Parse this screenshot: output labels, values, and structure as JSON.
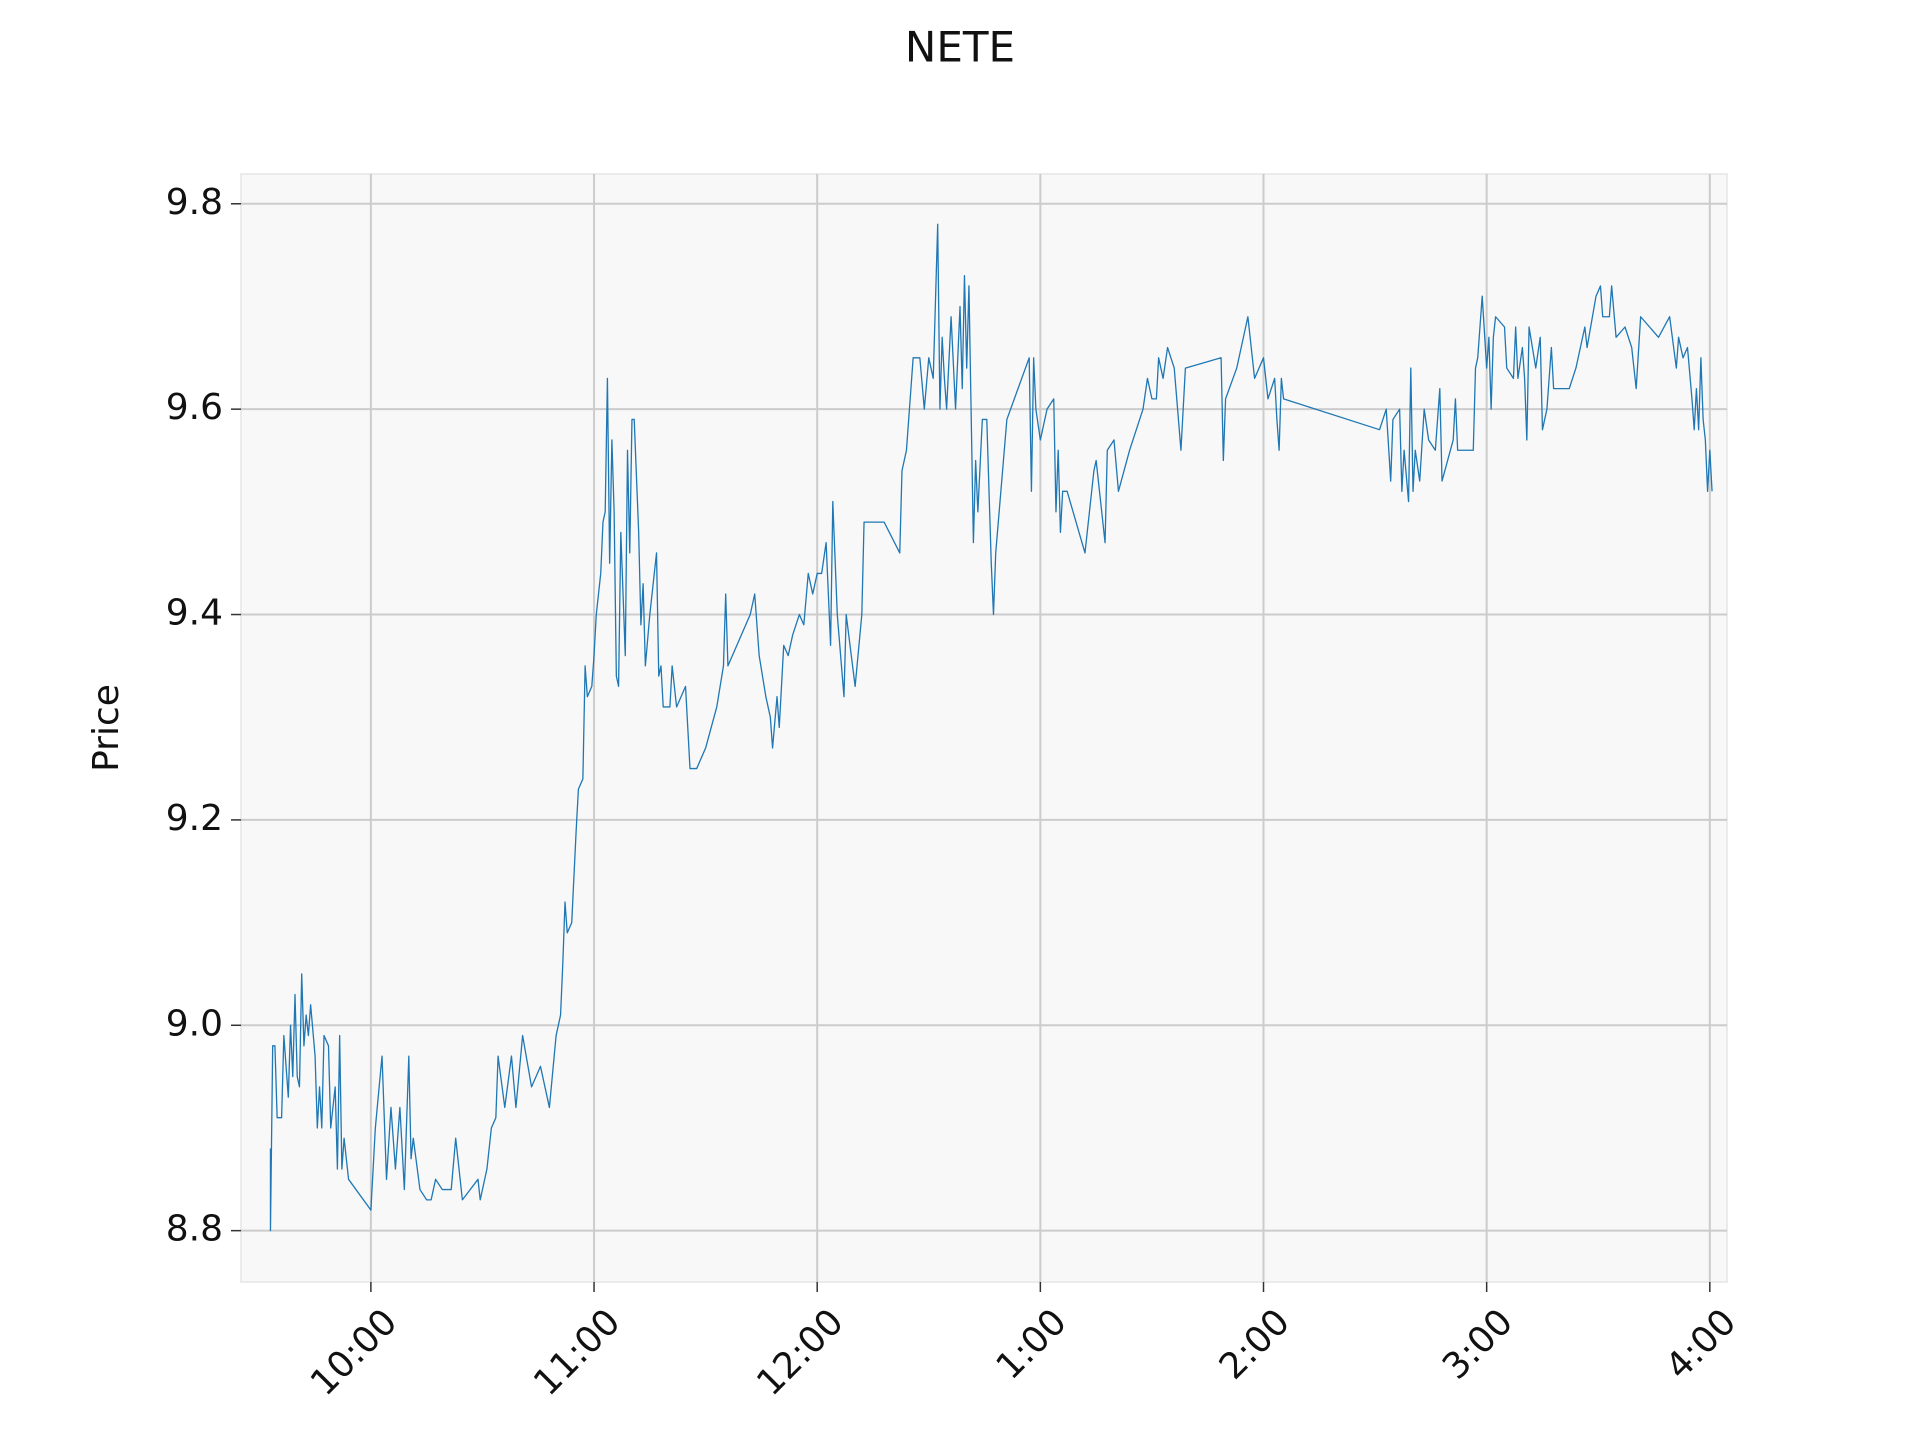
{
  "chart_data": {
    "type": "line",
    "title": "NETE",
    "ylabel": "Price",
    "color": "#1f77b4",
    "grid": true,
    "xlim": [
      9.418,
      16.077
    ],
    "ylim": [
      8.75,
      9.829
    ],
    "xticks": [
      {
        "value": 10,
        "label": "10:00"
      },
      {
        "value": 11,
        "label": "11:00"
      },
      {
        "value": 12,
        "label": "12:00"
      },
      {
        "value": 13,
        "label": "1:00"
      },
      {
        "value": 14,
        "label": "2:00"
      },
      {
        "value": 15,
        "label": "3:00"
      },
      {
        "value": 16,
        "label": "4:00"
      }
    ],
    "yticks": [
      8.8,
      {
        "value": 9,
        "label": "9.0"
      },
      9.2,
      9.4,
      9.6,
      9.8
    ],
    "x": [
      9.55,
      9.55,
      9.56,
      9.57,
      9.58,
      9.6,
      9.61,
      9.63,
      9.64,
      9.65,
      9.66,
      9.67,
      9.68,
      9.69,
      9.7,
      9.71,
      9.72,
      9.73,
      9.75,
      9.76,
      9.77,
      9.78,
      9.79,
      9.81,
      9.82,
      9.84,
      9.85,
      9.86,
      9.87,
      9.88,
      9.9,
      10.0,
      10.02,
      10.05,
      10.07,
      10.09,
      10.11,
      10.13,
      10.15,
      10.17,
      10.18,
      10.19,
      10.22,
      10.25,
      10.27,
      10.29,
      10.32,
      10.36,
      10.38,
      10.41,
      10.48,
      10.49,
      10.52,
      10.54,
      10.56,
      10.57,
      10.6,
      10.63,
      10.65,
      10.68,
      10.72,
      10.76,
      10.8,
      10.83,
      10.85,
      10.86,
      10.87,
      10.88,
      10.9,
      10.92,
      10.93,
      10.95,
      10.96,
      10.97,
      10.99,
      11.0,
      11.01,
      11.03,
      11.04,
      11.05,
      11.06,
      11.07,
      11.08,
      11.09,
      11.1,
      11.11,
      11.12,
      11.14,
      11.15,
      11.16,
      11.17,
      11.18,
      11.2,
      11.21,
      11.22,
      11.23,
      11.25,
      11.28,
      11.29,
      11.3,
      11.31,
      11.34,
      11.35,
      11.37,
      11.41,
      11.43,
      11.46,
      11.5,
      11.55,
      11.58,
      11.59,
      11.6,
      11.7,
      11.72,
      11.74,
      11.77,
      11.79,
      11.8,
      11.82,
      11.83,
      11.85,
      11.87,
      11.89,
      11.92,
      11.94,
      11.96,
      11.98,
      12.0,
      12.02,
      12.04,
      12.06,
      12.07,
      12.09,
      12.12,
      12.13,
      12.17,
      12.2,
      12.21,
      12.3,
      12.37,
      12.38,
      12.4,
      12.42,
      12.43,
      12.46,
      12.48,
      12.5,
      12.52,
      12.54,
      12.55,
      12.56,
      12.57,
      12.58,
      12.6,
      12.62,
      12.64,
      12.65,
      12.66,
      12.67,
      12.68,
      12.7,
      12.71,
      12.72,
      12.74,
      12.76,
      12.78,
      12.79,
      12.8,
      12.85,
      12.95,
      12.96,
      12.97,
      12.98,
      13.0,
      13.03,
      13.06,
      13.07,
      13.08,
      13.09,
      13.1,
      13.12,
      13.2,
      13.24,
      13.25,
      13.27,
      13.29,
      13.3,
      13.33,
      13.35,
      13.4,
      13.46,
      13.48,
      13.5,
      13.52,
      13.53,
      13.55,
      13.57,
      13.6,
      13.63,
      13.65,
      13.81,
      13.82,
      13.83,
      13.88,
      13.93,
      13.96,
      14.0,
      14.02,
      14.05,
      14.06,
      14.07,
      14.08,
      14.09,
      14.52,
      14.55,
      14.57,
      14.58,
      14.61,
      14.62,
      14.63,
      14.65,
      14.66,
      14.67,
      14.68,
      14.7,
      14.72,
      14.74,
      14.77,
      14.79,
      14.8,
      14.85,
      14.86,
      14.87,
      14.89,
      14.94,
      14.95,
      14.96,
      14.98,
      15.0,
      15.01,
      15.02,
      15.03,
      15.04,
      15.08,
      15.09,
      15.12,
      15.13,
      15.14,
      15.16,
      15.17,
      15.18,
      15.19,
      15.22,
      15.24,
      15.25,
      15.27,
      15.29,
      15.3,
      15.37,
      15.4,
      15.42,
      15.44,
      15.45,
      15.49,
      15.51,
      15.52,
      15.55,
      15.56,
      15.58,
      15.62,
      15.65,
      15.67,
      15.69,
      15.77,
      15.82,
      15.85,
      15.86,
      15.88,
      15.9,
      15.92,
      15.93,
      15.94,
      15.95,
      15.96,
      15.97,
      15.98,
      15.99,
      16.0,
      16.01
    ],
    "values": [
      8.88,
      8.8,
      8.98,
      8.98,
      8.91,
      8.91,
      8.99,
      8.93,
      9.0,
      8.95,
      9.03,
      8.95,
      8.94,
      9.05,
      8.98,
      9.01,
      8.99,
      9.02,
      8.97,
      8.9,
      8.94,
      8.9,
      8.99,
      8.98,
      8.9,
      8.94,
      8.86,
      8.99,
      8.86,
      8.89,
      8.85,
      8.82,
      8.9,
      8.97,
      8.85,
      8.92,
      8.86,
      8.92,
      8.84,
      8.97,
      8.87,
      8.89,
      8.84,
      8.83,
      8.83,
      8.85,
      8.84,
      8.84,
      8.89,
      8.83,
      8.85,
      8.83,
      8.86,
      8.9,
      8.91,
      8.97,
      8.92,
      8.97,
      8.92,
      8.99,
      8.94,
      8.96,
      8.92,
      8.99,
      9.01,
      9.06,
      9.12,
      9.09,
      9.1,
      9.19,
      9.23,
      9.24,
      9.35,
      9.32,
      9.33,
      9.36,
      9.4,
      9.44,
      9.49,
      9.5,
      9.63,
      9.45,
      9.57,
      9.5,
      9.34,
      9.33,
      9.48,
      9.36,
      9.56,
      9.46,
      9.59,
      9.59,
      9.48,
      9.39,
      9.43,
      9.35,
      9.4,
      9.46,
      9.34,
      9.35,
      9.31,
      9.31,
      9.35,
      9.31,
      9.33,
      9.25,
      9.25,
      9.27,
      9.31,
      9.35,
      9.42,
      9.35,
      9.4,
      9.42,
      9.36,
      9.32,
      9.3,
      9.27,
      9.32,
      9.29,
      9.37,
      9.36,
      9.38,
      9.4,
      9.39,
      9.44,
      9.42,
      9.44,
      9.44,
      9.47,
      9.37,
      9.51,
      9.4,
      9.32,
      9.4,
      9.33,
      9.4,
      9.49,
      9.49,
      9.46,
      9.54,
      9.56,
      9.62,
      9.65,
      9.65,
      9.6,
      9.65,
      9.63,
      9.78,
      9.6,
      9.67,
      9.63,
      9.6,
      9.69,
      9.6,
      9.7,
      9.62,
      9.73,
      9.64,
      9.72,
      9.47,
      9.55,
      9.5,
      9.59,
      9.59,
      9.45,
      9.4,
      9.46,
      9.59,
      9.65,
      9.52,
      9.65,
      9.6,
      9.57,
      9.6,
      9.61,
      9.5,
      9.56,
      9.48,
      9.52,
      9.52,
      9.46,
      9.54,
      9.55,
      9.51,
      9.47,
      9.56,
      9.57,
      9.52,
      9.56,
      9.6,
      9.63,
      9.61,
      9.61,
      9.65,
      9.63,
      9.66,
      9.64,
      9.56,
      9.64,
      9.65,
      9.55,
      9.61,
      9.64,
      9.69,
      9.63,
      9.65,
      9.61,
      9.63,
      9.59,
      9.56,
      9.63,
      9.61,
      9.58,
      9.6,
      9.53,
      9.59,
      9.6,
      9.52,
      9.56,
      9.51,
      9.64,
      9.52,
      9.56,
      9.53,
      9.6,
      9.57,
      9.56,
      9.62,
      9.53,
      9.57,
      9.61,
      9.56,
      9.56,
      9.56,
      9.64,
      9.65,
      9.71,
      9.64,
      9.67,
      9.6,
      9.67,
      9.69,
      9.68,
      9.64,
      9.63,
      9.68,
      9.63,
      9.66,
      9.63,
      9.57,
      9.68,
      9.64,
      9.67,
      9.58,
      9.6,
      9.66,
      9.62,
      9.62,
      9.64,
      9.66,
      9.68,
      9.66,
      9.71,
      9.72,
      9.69,
      9.69,
      9.72,
      9.67,
      9.68,
      9.66,
      9.62,
      9.69,
      9.67,
      9.69,
      9.64,
      9.67,
      9.65,
      9.66,
      9.61,
      9.58,
      9.62,
      9.58,
      9.65,
      9.59,
      9.57,
      9.52,
      9.56,
      9.52
    ]
  }
}
